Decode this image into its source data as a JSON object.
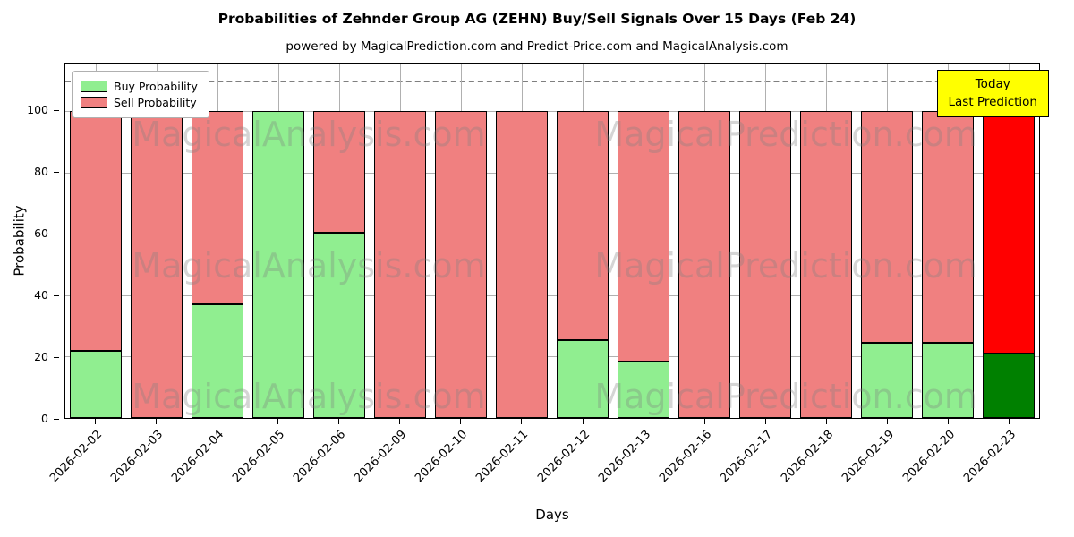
{
  "chart_data": {
    "type": "bar",
    "stacked": true,
    "title": "Probabilities of Zehnder Group AG (ZEHN) Buy/Sell Signals Over 15 Days (Feb 24)",
    "subtitle": "powered by MagicalPrediction.com and Predict-Price.com and MagicalAnalysis.com",
    "xlabel": "Days",
    "ylabel": "Probability",
    "ylim": [
      0,
      115.5
    ],
    "yticks": [
      0,
      20,
      40,
      60,
      80,
      100
    ],
    "dashed_line_y": 110,
    "grid": true,
    "legend_position": "upper left",
    "categories": [
      "2026-02-02",
      "2026-02-03",
      "2026-02-04",
      "2026-02-05",
      "2026-02-06",
      "2026-02-09",
      "2026-02-10",
      "2026-02-11",
      "2026-02-12",
      "2026-02-13",
      "2026-02-16",
      "2026-02-17",
      "2026-02-18",
      "2026-02-19",
      "2026-02-20",
      "2026-02-23"
    ],
    "series": [
      {
        "name": "Buy Probability",
        "color": "#90EE90",
        "values": [
          22,
          0,
          37,
          100,
          60.5,
          0,
          0,
          0,
          25.5,
          18.5,
          0,
          0,
          0,
          24.5,
          24.5,
          21
        ]
      },
      {
        "name": "Sell Probability",
        "color": "#F08080",
        "values": [
          78,
          100,
          63,
          0,
          39.5,
          100,
          100,
          100,
          74.5,
          81.5,
          100,
          100,
          100,
          75.5,
          75.5,
          79
        ]
      }
    ],
    "last_bar_colors": {
      "buy": "#008000",
      "sell": "#FF0000"
    },
    "legend": {
      "items": [
        {
          "label": "Buy Probability",
          "color": "#90EE90"
        },
        {
          "label": "Sell Probability",
          "color": "#F08080"
        }
      ]
    },
    "annotation": {
      "line1": "Today",
      "line2": "Last Prediction",
      "bg": "#FFFF00"
    },
    "watermarks": {
      "texts": [
        "MagicalAnalysis.com",
        "MagicalPrediction.com"
      ],
      "rows_pct": [
        20,
        57,
        94
      ],
      "cols_pct": [
        25,
        74
      ],
      "color": "#808080"
    }
  }
}
